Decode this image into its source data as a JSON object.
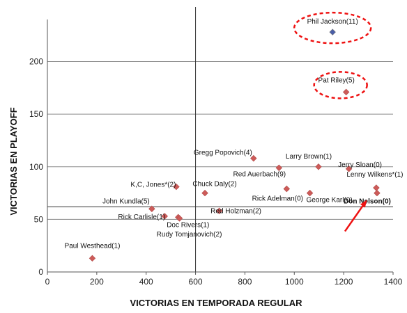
{
  "chart_data": {
    "type": "scatter",
    "title": "",
    "xlabel": "VICTORIAS EN TEMPORADA REGULAR",
    "ylabel": "VICTORIAS EN PLAYOFF",
    "xlim": [
      0,
      1400
    ],
    "ylim": [
      0,
      240
    ],
    "x_ticks": [
      "0",
      "200",
      "400",
      "600",
      "800",
      "1000",
      "1200",
      "1400"
    ],
    "y_ticks": [
      "0",
      "50",
      "100",
      "150",
      "200"
    ],
    "reference_lines": {
      "x": 600,
      "y": 62
    },
    "grid": "horizontal",
    "marker_color": "#cd5b59",
    "highlight_color": "#4a5ea8",
    "annotation_color": "#ee1111",
    "points": [
      {
        "label": "Phil Jackson(11)",
        "x": 1155,
        "y": 228,
        "highlight": true,
        "circled": true
      },
      {
        "label": "Pat Riley(5)",
        "x": 1210,
        "y": 171,
        "circled": true
      },
      {
        "label": "Gregg Popovich(4)",
        "x": 835,
        "y": 108
      },
      {
        "label": "Larry Brown(1)",
        "x": 1098,
        "y": 100
      },
      {
        "label": "Red Auerbach(9)",
        "x": 938,
        "y": 99
      },
      {
        "label": "Jerry Sloan(0)",
        "x": 1221,
        "y": 98
      },
      {
        "label": "Lenny Wilkens*(1)",
        "x": 1332,
        "y": 80
      },
      {
        "label": "K,C, Jones*(2)",
        "x": 522,
        "y": 81
      },
      {
        "label": "Chuck Daly(2)",
        "x": 638,
        "y": 75
      },
      {
        "label": "Rick Adelman(0)",
        "x": 969,
        "y": 79
      },
      {
        "label": "George Karl(0)",
        "x": 1063,
        "y": 75
      },
      {
        "label": "Don Nelson(0)",
        "x": 1335,
        "y": 75,
        "bold": true,
        "arrow": true
      },
      {
        "label": "John Kundla(5)",
        "x": 423,
        "y": 60
      },
      {
        "label": "Red Holzman(2)",
        "x": 696,
        "y": 58
      },
      {
        "label": "Rick Carlisle(1)",
        "x": 475,
        "y": 53
      },
      {
        "label": "Doc Rivers(1)",
        "x": 530,
        "y": 52
      },
      {
        "label": "Rudy Tomjanovich(2)",
        "x": 535,
        "y": 51
      },
      {
        "label": "Paul Westhead(1)",
        "x": 182,
        "y": 13
      }
    ]
  }
}
